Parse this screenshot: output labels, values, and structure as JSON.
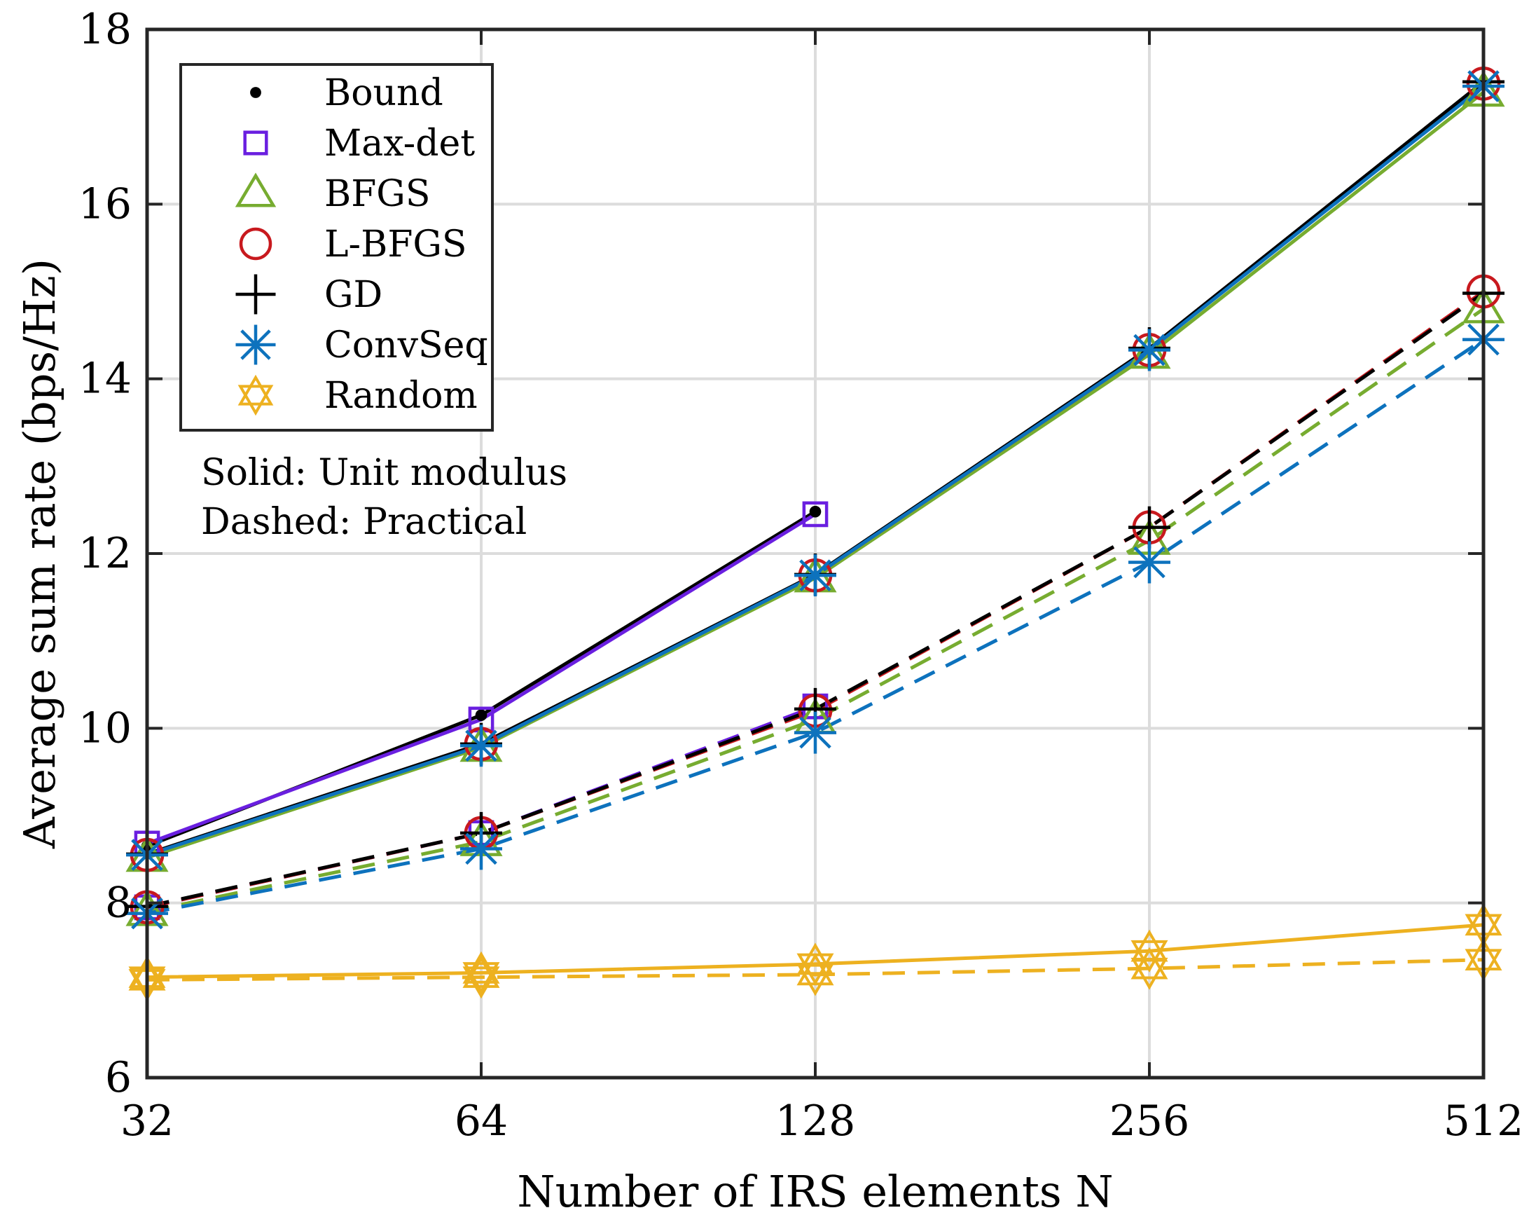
{
  "chart_data": {
    "type": "line",
    "title": "",
    "xlabel": "Number of IRS elements N",
    "ylabel": "Average sum rate (bps/Hz)",
    "x": [
      32,
      64,
      128,
      256,
      512
    ],
    "x_ticks": [
      "32",
      "64",
      "128",
      "256",
      "512"
    ],
    "x_scale": "log2",
    "xlim": [
      32,
      512
    ],
    "ylim": [
      6,
      18
    ],
    "y_ticks": [
      6,
      8,
      10,
      12,
      14,
      16,
      18
    ],
    "grid": true,
    "legend_position": "top-left",
    "annotations": [
      "Solid: Unit modulus",
      "Dashed: Practical"
    ],
    "legend": [
      {
        "name": "Bound",
        "color": "#000000",
        "marker": "dot"
      },
      {
        "name": "Max-det",
        "color": "#6a1fe0",
        "marker": "square"
      },
      {
        "name": "BFGS",
        "color": "#77ac30",
        "marker": "triangle"
      },
      {
        "name": "L-BFGS",
        "color": "#c8191e",
        "marker": "circle"
      },
      {
        "name": "GD",
        "color": "#000000",
        "marker": "plus"
      },
      {
        "name": "ConvSeq",
        "color": "#0d72bd",
        "marker": "asterisk"
      },
      {
        "name": "Random",
        "color": "#edb120",
        "marker": "hexagram"
      }
    ],
    "series": [
      {
        "name": "Bound",
        "style": "solid",
        "color": "#000000",
        "marker": "dot",
        "values": [
          8.65,
          10.15,
          12.48,
          null,
          null
        ]
      },
      {
        "name": "Max-det",
        "style": "solid",
        "color": "#6a1fe0",
        "marker": "square",
        "values": [
          8.68,
          10.1,
          12.45,
          null,
          null
        ]
      },
      {
        "name": "BFGS",
        "style": "solid",
        "color": "#77ac30",
        "marker": "triangle",
        "values": [
          8.52,
          9.78,
          11.72,
          14.28,
          17.28
        ]
      },
      {
        "name": "L-BFGS",
        "style": "solid",
        "color": "#c8191e",
        "marker": "circle",
        "values": [
          8.55,
          9.82,
          11.75,
          14.33,
          17.38
        ]
      },
      {
        "name": "GD",
        "style": "solid",
        "color": "#000000",
        "marker": "plus",
        "values": [
          8.56,
          9.82,
          11.76,
          14.35,
          17.4
        ]
      },
      {
        "name": "ConvSeq",
        "style": "solid",
        "color": "#0d72bd",
        "marker": "asterisk",
        "values": [
          8.55,
          9.8,
          11.75,
          14.33,
          17.35
        ]
      },
      {
        "name": "Random",
        "style": "solid",
        "color": "#edb120",
        "marker": "hexagram",
        "values": [
          7.15,
          7.2,
          7.3,
          7.45,
          7.75
        ]
      },
      {
        "name": "Max-det",
        "style": "dashed",
        "color": "#6a1fe0",
        "marker": "square",
        "values": [
          7.95,
          8.8,
          10.25,
          null,
          null
        ]
      },
      {
        "name": "BFGS",
        "style": "dashed",
        "color": "#77ac30",
        "marker": "triangle",
        "values": [
          7.9,
          8.7,
          10.1,
          12.15,
          14.8
        ]
      },
      {
        "name": "L-BFGS",
        "style": "dashed",
        "color": "#c8191e",
        "marker": "circle",
        "values": [
          7.95,
          8.8,
          10.2,
          12.3,
          15.0
        ]
      },
      {
        "name": "GD",
        "style": "dashed",
        "color": "#000000",
        "marker": "plus",
        "values": [
          7.96,
          8.8,
          10.22,
          12.3,
          14.98
        ]
      },
      {
        "name": "ConvSeq",
        "style": "dashed",
        "color": "#0d72bd",
        "marker": "asterisk",
        "values": [
          7.88,
          8.62,
          9.95,
          11.9,
          14.45
        ]
      },
      {
        "name": "Random",
        "style": "dashed",
        "color": "#edb120",
        "marker": "hexagram",
        "values": [
          7.12,
          7.15,
          7.18,
          7.25,
          7.35
        ]
      }
    ]
  }
}
